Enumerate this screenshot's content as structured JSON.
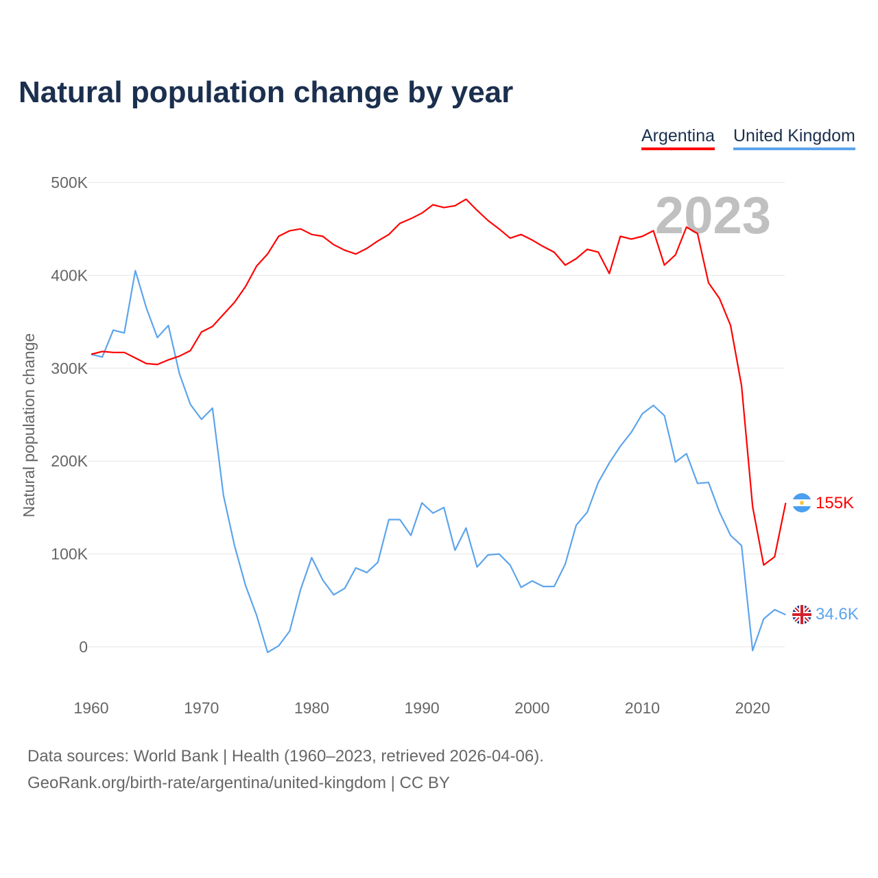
{
  "title": "Natural population change by year",
  "legend": [
    {
      "label": "Argentina",
      "color": "#ff0000"
    },
    {
      "label": "United Kingdom",
      "color": "#5ca4ec"
    }
  ],
  "year_watermark": "2023",
  "end_labels": {
    "argentina": "155K",
    "uk": "34.6K"
  },
  "footer": {
    "line1": "Data sources: World Bank | Health (1960–2023, retrieved 2026-04-06).",
    "line2": "GeoRank.org/birth-rate/argentina/united-kingdom | CC BY"
  },
  "chart_data": {
    "type": "line",
    "title": "Natural population change by year",
    "ylabel": "Natural population change",
    "xlabel": "",
    "xlim": [
      1960,
      2023
    ],
    "ylim": [
      -50000,
      500000
    ],
    "x_ticks": [
      1960,
      1970,
      1980,
      1990,
      2000,
      2010,
      2020
    ],
    "y_ticks": [
      0,
      100000,
      200000,
      300000,
      400000,
      500000
    ],
    "y_tick_labels": [
      "0",
      "100K",
      "200K",
      "300K",
      "400K",
      "500K"
    ],
    "grid": true,
    "legend_position": "top-right",
    "x_start": 1960,
    "series": [
      {
        "name": "Argentina",
        "color": "#ff0000",
        "values_thousands": [
          315,
          318,
          317,
          317,
          311,
          305,
          304,
          309,
          313,
          319,
          339,
          345,
          358,
          371,
          388,
          410,
          423,
          442,
          448,
          450,
          444,
          442,
          433,
          427,
          423,
          429,
          437,
          444,
          456,
          461,
          467,
          476,
          473,
          475,
          482,
          470,
          459,
          450,
          440,
          444,
          438,
          431,
          425,
          411,
          418,
          428,
          425,
          402,
          442,
          439,
          442,
          448,
          411,
          422,
          452,
          445,
          392,
          375,
          346,
          281,
          151,
          88,
          97,
          155
        ]
      },
      {
        "name": "United Kingdom",
        "color": "#5ca4ec",
        "values_thousands": [
          315,
          312,
          341,
          338,
          405,
          365,
          333,
          346,
          294,
          261,
          245,
          257,
          163,
          109,
          66,
          34,
          -6,
          1,
          17,
          62,
          96,
          72,
          56,
          63,
          85,
          80,
          91,
          137,
          137,
          120,
          155,
          144,
          150,
          104,
          128,
          86,
          99,
          100,
          88,
          64,
          71,
          65,
          65,
          89,
          131,
          145,
          177,
          198,
          216,
          231,
          251,
          260,
          249,
          199,
          208,
          176,
          177,
          145,
          120,
          109,
          -4,
          30,
          40,
          34.6
        ]
      }
    ]
  }
}
